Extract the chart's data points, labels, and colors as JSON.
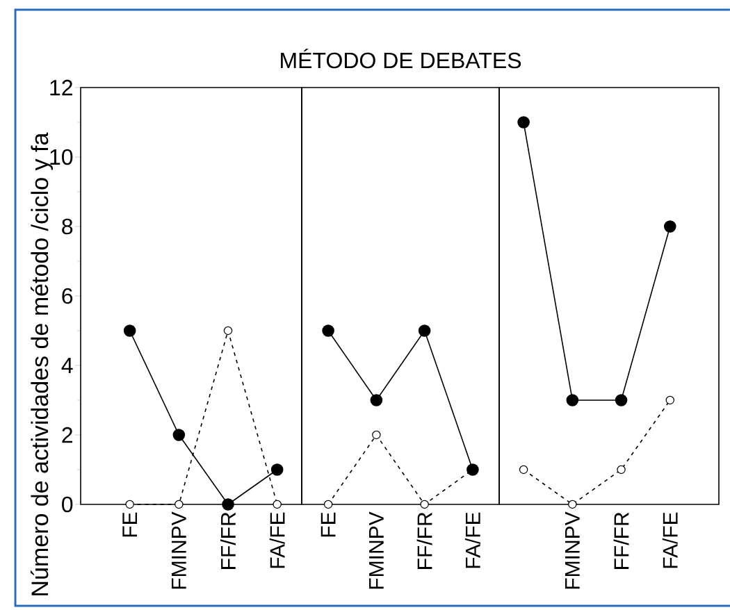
{
  "chart_data": [
    {
      "type": "line",
      "ylabel": "Número de actividades de método /ciclo y fa",
      "categories": [
        "FE",
        "FMINPV",
        "FF/FR",
        "FA/FE"
      ],
      "series": [
        {
          "color": "#000000",
          "values": [
            5,
            2,
            0,
            1
          ],
          "line_style": "solid",
          "marker": "circle"
        },
        {
          "color": "#000000",
          "values": [
            0,
            0,
            5,
            0
          ],
          "line_style": "dashed",
          "marker": "circle"
        }
      ],
      "ylim": [
        0,
        12
      ],
      "yticks": [
        0,
        {
          "value": 1,
          "label": null
        },
        2,
        {
          "value": 3,
          "label": null
        },
        4,
        {
          "value": 5,
          "label": null
        },
        6,
        {
          "value": 7,
          "label": null
        },
        8,
        {
          "value": 9,
          "label": null
        },
        10,
        {
          "value": 11,
          "label": null
        },
        12
      ]
    },
    {
      "type": "line",
      "title": "MÉTODO DE DEBATES",
      "categories": [
        "FE",
        "FMINPV",
        "FF/FR",
        "FA/FE"
      ],
      "series": [
        {
          "color": "#000000",
          "values": [
            5,
            3,
            5,
            1
          ],
          "line_style": "solid",
          "marker": "circle"
        },
        {
          "color": "#000000",
          "values": [
            0,
            2,
            0,
            1
          ],
          "line_style": "dashed",
          "marker": "circle"
        }
      ],
      "ylim": [
        0,
        12
      ],
      "tick_labels": "x"
    },
    {
      "type": "line",
      "categories": [
        null,
        "FMINPV",
        "FF/FR",
        "FA/FE"
      ],
      "series": [
        {
          "color": "#000000",
          "values": [
            11,
            3,
            3,
            8
          ],
          "line_style": "solid",
          "marker": "circle"
        },
        {
          "color": "#000000",
          "values": [
            1,
            0,
            1,
            3
          ],
          "line_style": "dashed",
          "marker": "circle"
        }
      ],
      "ylim": [
        0,
        12
      ],
      "tick_labels": "x"
    }
  ]
}
